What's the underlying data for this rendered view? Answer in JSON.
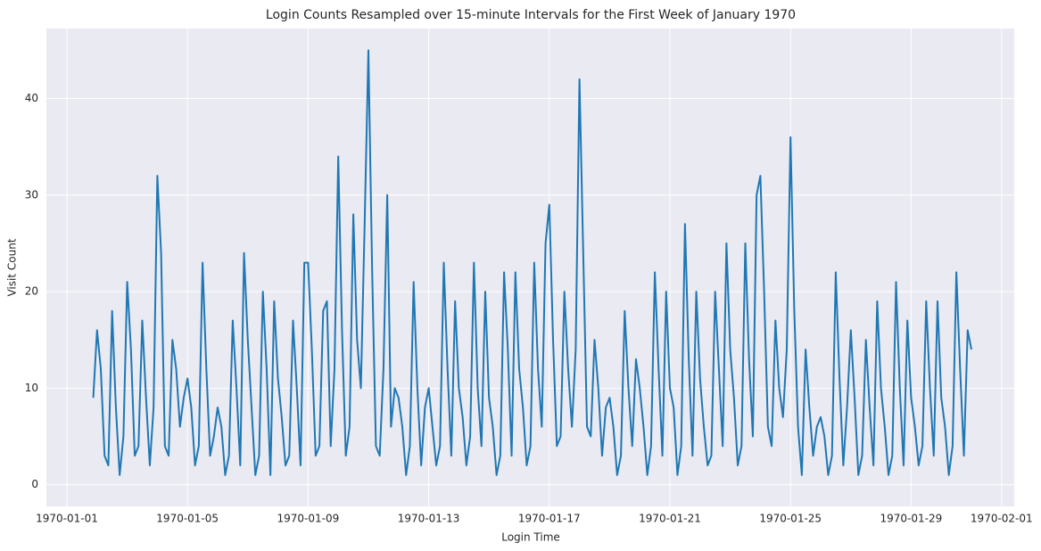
{
  "chart_data": {
    "type": "line",
    "title": "Login Counts Resampled over 15-minute Intervals for the First Week of January 1970",
    "x_label": "Login Time",
    "y_label": "Visit Count",
    "color": "#1f77b4",
    "grid": true,
    "xlim": [
      -0.68,
      31.42
    ],
    "ylim": [
      -2.25,
      47.25
    ],
    "xticks": [
      {
        "value": 0,
        "label": "1970-01-01"
      },
      {
        "value": 4,
        "label": "1970-01-05"
      },
      {
        "value": 8,
        "label": "1970-01-09"
      },
      {
        "value": 12,
        "label": "1970-01-13"
      },
      {
        "value": 16,
        "label": "1970-01-17"
      },
      {
        "value": 20,
        "label": "1970-01-21"
      },
      {
        "value": 24,
        "label": "1970-01-25"
      },
      {
        "value": 28,
        "label": "1970-01-29"
      },
      {
        "value": 31,
        "label": "1970-02-01"
      }
    ],
    "yticks": [
      0,
      10,
      20,
      30,
      40
    ],
    "x": [
      0.875,
      1,
      1.125,
      1.25,
      1.375,
      1.5,
      1.625,
      1.75,
      1.875,
      2,
      2.125,
      2.25,
      2.375,
      2.5,
      2.625,
      2.75,
      2.875,
      3,
      3.125,
      3.25,
      3.375,
      3.5,
      3.625,
      3.75,
      3.875,
      4,
      4.125,
      4.25,
      4.375,
      4.5,
      4.625,
      4.75,
      4.875,
      5,
      5.125,
      5.25,
      5.375,
      5.5,
      5.625,
      5.75,
      5.875,
      6,
      6.125,
      6.25,
      6.375,
      6.5,
      6.625,
      6.75,
      6.875,
      7,
      7.125,
      7.25,
      7.375,
      7.5,
      7.625,
      7.75,
      7.875,
      8,
      8.125,
      8.25,
      8.375,
      8.5,
      8.625,
      8.75,
      8.875,
      9,
      9.125,
      9.25,
      9.375,
      9.5,
      9.625,
      9.75,
      9.875,
      10,
      10.125,
      10.25,
      10.375,
      10.5,
      10.625,
      10.75,
      10.875,
      11,
      11.125,
      11.25,
      11.375,
      11.5,
      11.625,
      11.75,
      11.875,
      12,
      12.125,
      12.25,
      12.375,
      12.5,
      12.625,
      12.75,
      12.875,
      13,
      13.125,
      13.25,
      13.375,
      13.5,
      13.625,
      13.75,
      13.875,
      14,
      14.125,
      14.25,
      14.375,
      14.5,
      14.625,
      14.75,
      14.875,
      15,
      15.125,
      15.25,
      15.375,
      15.5,
      15.625,
      15.75,
      15.875,
      16,
      16.125,
      16.25,
      16.375,
      16.5,
      16.625,
      16.75,
      16.875,
      17,
      17.125,
      17.25,
      17.375,
      17.5,
      17.625,
      17.75,
      17.875,
      18,
      18.125,
      18.25,
      18.375,
      18.5,
      18.625,
      18.75,
      18.875,
      19,
      19.125,
      19.25,
      19.375,
      19.5,
      19.625,
      19.75,
      19.875,
      20,
      20.125,
      20.25,
      20.375,
      20.5,
      20.625,
      20.75,
      20.875,
      21,
      21.125,
      21.25,
      21.375,
      21.5,
      21.625,
      21.75,
      21.875,
      22,
      22.125,
      22.25,
      22.375,
      22.5,
      22.625,
      22.75,
      22.875,
      23,
      23.125,
      23.25,
      23.375,
      23.5,
      23.625,
      23.75,
      23.875,
      24,
      24.125,
      24.25,
      24.375,
      24.5,
      24.625,
      24.75,
      24.875,
      25,
      25.125,
      25.25,
      25.375,
      25.5,
      25.625,
      25.75,
      25.875,
      26,
      26.125,
      26.25,
      26.375,
      26.5,
      26.625,
      26.75,
      26.875,
      27,
      27.125,
      27.25,
      27.375,
      27.5,
      27.625,
      27.75,
      27.875,
      28,
      28.125,
      28.25,
      28.375,
      28.5,
      28.625,
      28.75,
      28.875,
      29,
      29.125,
      29.25,
      29.375,
      29.5,
      29.625,
      29.75,
      29.875,
      30
    ],
    "values": [
      9,
      16,
      12,
      3,
      2,
      18,
      8,
      1,
      5,
      21,
      14,
      3,
      4,
      17,
      9,
      2,
      8,
      32,
      24,
      4,
      3,
      15,
      12,
      6,
      9,
      11,
      8,
      2,
      4,
      23,
      12,
      3,
      5,
      8,
      6,
      1,
      3,
      17,
      10,
      2,
      24,
      15,
      8,
      1,
      3,
      20,
      12,
      1,
      19,
      11,
      7,
      2,
      3,
      17,
      10,
      2,
      23,
      23,
      14,
      3,
      4,
      18,
      19,
      4,
      12,
      34,
      16,
      3,
      6,
      28,
      15,
      10,
      27,
      45,
      22,
      4,
      3,
      12,
      30,
      6,
      10,
      9,
      6,
      1,
      4,
      21,
      10,
      2,
      8,
      10,
      6,
      2,
      4,
      23,
      12,
      3,
      19,
      10,
      7,
      2,
      5,
      23,
      10,
      4,
      20,
      9,
      6,
      1,
      3,
      22,
      14,
      3,
      22,
      12,
      8,
      2,
      4,
      23,
      12,
      6,
      25,
      29,
      15,
      4,
      5,
      20,
      12,
      6,
      14,
      42,
      24,
      6,
      5,
      15,
      10,
      3,
      8,
      9,
      6,
      1,
      3,
      18,
      10,
      4,
      13,
      10,
      6,
      1,
      4,
      22,
      12,
      3,
      20,
      10,
      8,
      1,
      4,
      27,
      13,
      3,
      20,
      11,
      6,
      2,
      3,
      20,
      12,
      4,
      25,
      14,
      9,
      2,
      4,
      25,
      13,
      5,
      30,
      32,
      20,
      6,
      4,
      17,
      10,
      7,
      14,
      36,
      18,
      6,
      1,
      14,
      8,
      3,
      6,
      7,
      5,
      1,
      3,
      22,
      11,
      2,
      8,
      16,
      9,
      1,
      3,
      15,
      8,
      2,
      19,
      10,
      6,
      1,
      3,
      21,
      10,
      2,
      17,
      9,
      6,
      2,
      4,
      19,
      10,
      3,
      19,
      9,
      6,
      1,
      4,
      22,
      12,
      3,
      16,
      14
    ]
  }
}
